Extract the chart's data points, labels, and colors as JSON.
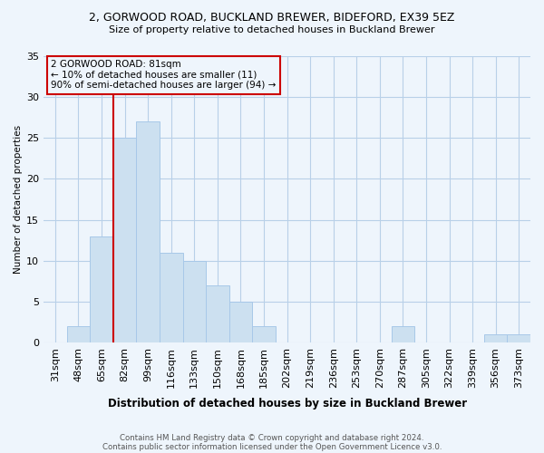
{
  "title": "2, GORWOOD ROAD, BUCKLAND BREWER, BIDEFORD, EX39 5EZ",
  "subtitle": "Size of property relative to detached houses in Buckland Brewer",
  "xlabel": "Distribution of detached houses by size in Buckland Brewer",
  "ylabel": "Number of detached properties",
  "bins": [
    "31sqm",
    "48sqm",
    "65sqm",
    "82sqm",
    "99sqm",
    "116sqm",
    "133sqm",
    "150sqm",
    "168sqm",
    "185sqm",
    "202sqm",
    "219sqm",
    "236sqm",
    "253sqm",
    "270sqm",
    "287sqm",
    "305sqm",
    "322sqm",
    "339sqm",
    "356sqm",
    "373sqm"
  ],
  "values": [
    0,
    2,
    13,
    25,
    27,
    11,
    10,
    7,
    5,
    2,
    0,
    0,
    0,
    0,
    0,
    2,
    0,
    0,
    0,
    1,
    1
  ],
  "bar_color": "#cce0f0",
  "bar_edge_color": "#a8c8e8",
  "marker_bin_index": 3,
  "marker_color": "#cc0000",
  "annotation_line1": "2 GORWOOD ROAD: 81sqm",
  "annotation_line2": "← 10% of detached houses are smaller (11)",
  "annotation_line3": "90% of semi-detached houses are larger (94) →",
  "annotation_box_color": "#cc0000",
  "ylim": [
    0,
    35
  ],
  "footnote1": "Contains HM Land Registry data © Crown copyright and database right 2024.",
  "footnote2": "Contains public sector information licensed under the Open Government Licence v3.0.",
  "bg_color": "#eef5fc",
  "grid_color": "#b8d0e8"
}
